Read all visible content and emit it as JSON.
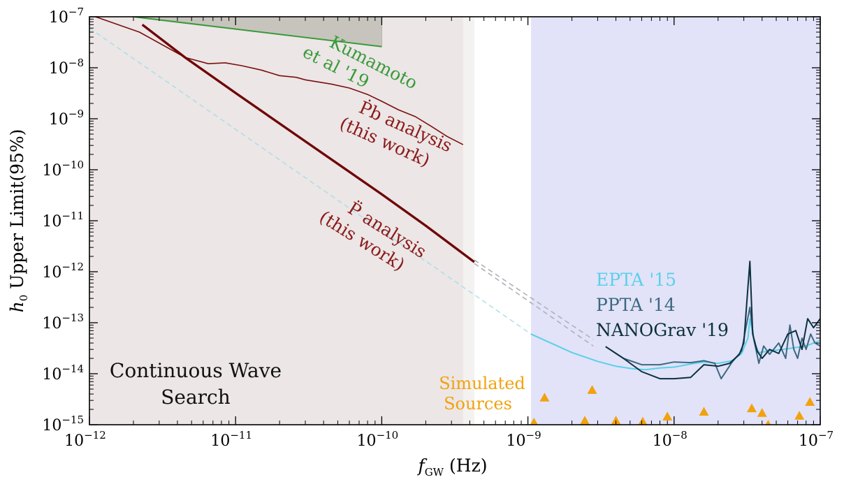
{
  "chart_data": {
    "type": "line",
    "title": "",
    "xlabel": "f_GW (Hz)",
    "ylabel": "h_0 Upper Limit(95%)",
    "xscale": "log",
    "yscale": "log",
    "xlim": [
      1e-12,
      1e-07
    ],
    "ylim": [
      1e-15,
      1e-07
    ],
    "grid": false,
    "x_ticks": [
      {
        "base": "10",
        "exp": "−12",
        "value": 1e-12
      },
      {
        "base": "10",
        "exp": "−11",
        "value": 1e-11
      },
      {
        "base": "10",
        "exp": "−10",
        "value": 1e-10
      },
      {
        "base": "10",
        "exp": "−9",
        "value": 1e-09
      },
      {
        "base": "10",
        "exp": "−8",
        "value": 1e-08
      },
      {
        "base": "10",
        "exp": "−7",
        "value": 1e-07
      }
    ],
    "y_ticks": [
      {
        "base": "10",
        "exp": "−15",
        "value": 1e-15
      },
      {
        "base": "10",
        "exp": "−14",
        "value": 1e-14
      },
      {
        "base": "10",
        "exp": "−13",
        "value": 1e-13
      },
      {
        "base": "10",
        "exp": "−12",
        "value": 1e-12
      },
      {
        "base": "10",
        "exp": "−11",
        "value": 1e-11
      },
      {
        "base": "10",
        "exp": "−10",
        "value": 1e-10
      },
      {
        "base": "10",
        "exp": "−9",
        "value": 1e-09
      },
      {
        "base": "10",
        "exp": "−8",
        "value": 1e-08
      },
      {
        "base": "10",
        "exp": "−7",
        "value": 1e-07
      }
    ],
    "shaded_regions": [
      {
        "color": "#c8b8b8",
        "opacity": 0.35,
        "x": [
          1e-12,
          3.6e-10
        ]
      },
      {
        "color": "#c8b8b8",
        "opacity": 0.2,
        "x": [
          3.6e-10,
          4.3e-10
        ]
      },
      {
        "color": "#ced0f4",
        "opacity": 0.6,
        "x": [
          1.05e-09,
          1e-07
        ]
      }
    ],
    "kumamoto_region": {
      "color": "#a8a89a",
      "x": [
        2e-12,
        1e-10
      ],
      "y_floor": 2.8e-08
    },
    "series": [
      {
        "name": "Kumamoto et al '19",
        "color": "#3a9a3a",
        "width": 2,
        "x": [
          2e-12,
          1e-10
        ],
        "y": [
          1e-07,
          2.6e-08
        ]
      },
      {
        "name": "Ṗb analysis (this work)",
        "color": "#7a1010",
        "width": 1.6,
        "x": [
          1.1e-12,
          2.2e-12,
          4.5e-12,
          6.5e-12,
          8.5e-12,
          1.1e-11,
          1.5e-11,
          2e-11,
          2.6e-11,
          3e-11,
          4.5e-11,
          6e-11,
          8e-11,
          1e-10,
          1.3e-10,
          1.7e-10,
          2.2e-10,
          2.8e-10,
          3.6e-10
        ],
        "y": [
          1e-07,
          5e-08,
          1.6e-08,
          1.2e-08,
          1.25e-08,
          1.1e-08,
          9e-09,
          7e-09,
          6.5e-09,
          5.8e-09,
          4.8e-09,
          4e-09,
          3e-09,
          2.2e-09,
          1.5e-09,
          1.1e-09,
          7e-10,
          4.5e-10,
          3.1e-10
        ]
      },
      {
        "name": "P̈ analysis (this work)",
        "color": "#6e0606",
        "width": 3.4,
        "x": [
          2.3e-12,
          4.5e-12,
          1e-11,
          3e-11,
          1e-10,
          2e-10,
          4.3e-10
        ],
        "y": [
          7e-08,
          1.6e-08,
          3.2e-09,
          3.6e-10,
          3.3e-11,
          8e-12,
          1.55e-12
        ]
      },
      {
        "name": "Ṗb extrapolation",
        "color": "#b0b0b8",
        "width": 1.6,
        "dash": "7,5",
        "x": [
          4.3e-10,
          2.8e-09
        ],
        "y": [
          1.7e-12,
          4.7e-14
        ]
      },
      {
        "name": "P̈ extrapolation",
        "color": "#b0b0b8",
        "width": 1.6,
        "dash": "7,5",
        "x": [
          4.3e-10,
          2.8e-09
        ],
        "y": [
          1.45e-12,
          3.5e-14
        ]
      },
      {
        "name": "EPTA extrapolation",
        "color": "#a8dde6",
        "width": 1.4,
        "dash": "7,5",
        "x": [
          1e-12,
          1.05e-09
        ],
        "y": [
          6e-08,
          6e-14
        ]
      },
      {
        "name": "EPTA '15",
        "color": "#5ad0ea",
        "width": 2,
        "x": [
          1.05e-09,
          2e-09,
          3e-09,
          4e-09,
          5.2e-09,
          6.4e-09,
          8e-09,
          1e-08,
          1.3e-08,
          1.6e-08,
          2e-08,
          2.5e-08,
          2.9e-08,
          3.2e-08,
          3.3e-08,
          3.55e-08,
          3.8e-08,
          4.5e-08,
          5.5e-08,
          6.5e-08,
          8e-08,
          1e-07
        ],
        "y": [
          6e-14,
          2.6e-14,
          1.75e-14,
          1.4e-14,
          1.25e-14,
          1.2e-14,
          1.3e-14,
          1.35e-14,
          1.55e-14,
          1.7e-14,
          1.6e-14,
          1.8e-14,
          2.5e-14,
          5e-14,
          1.2e-13,
          4e-14,
          2.6e-14,
          2.8e-14,
          3e-14,
          3.2e-14,
          3.5e-14,
          4.5e-14
        ]
      },
      {
        "name": "PPTA '14",
        "color": "#3e6880",
        "width": 2,
        "x": [
          3.4e-09,
          4.5e-09,
          6e-09,
          8e-09,
          1e-08,
          1.3e-08,
          1.6e-08,
          1.9e-08,
          2.1e-08,
          2.5e-08,
          2.9e-08,
          3.1e-08,
          3.3e-08,
          3.5e-08,
          3.8e-08,
          4.1e-08,
          4.5e-08,
          5.2e-08,
          5.8e-08,
          6.2e-08,
          6.6e-08,
          7e-08,
          7.5e-08,
          8e-08,
          8.6e-08,
          9.2e-08,
          1e-07
        ],
        "y": [
          3.4e-14,
          2e-14,
          1.5e-14,
          1.5e-14,
          1.7e-14,
          1.65e-14,
          1.8e-14,
          1.6e-14,
          8e-15,
          1.7e-14,
          2.8e-14,
          8e-14,
          2e-13,
          5e-14,
          1.6e-14,
          3.5e-14,
          2.4e-14,
          4e-14,
          2e-14,
          9e-14,
          3e-14,
          2e-14,
          5e-14,
          3e-14,
          6e-14,
          4e-14,
          3.5e-14
        ]
      },
      {
        "name": "NANOGrav '19",
        "color": "#0c3040",
        "width": 2,
        "x": [
          3.4e-09,
          4.5e-09,
          6e-09,
          8e-09,
          1e-08,
          1.3e-08,
          1.6e-08,
          2e-08,
          2.4e-08,
          2.8e-08,
          3e-08,
          3.2e-08,
          3.3e-08,
          3.45e-08,
          3.7e-08,
          4e-08,
          4.5e-08,
          5.2e-08,
          6e-08,
          6.8e-08,
          7.5e-08,
          8.2e-08,
          9e-08,
          1e-07
        ],
        "y": [
          3.4e-14,
          2e-14,
          1.1e-14,
          8e-15,
          8e-15,
          8.5e-15,
          1.5e-14,
          1.4e-14,
          1.6e-14,
          2.4e-14,
          4e-14,
          5e-13,
          1.6e-12,
          6e-14,
          2.8e-14,
          2e-14,
          3e-14,
          2.5e-14,
          6e-14,
          7e-14,
          3e-14,
          1.2e-13,
          8e-14,
          1.2e-13
        ]
      }
    ],
    "scatter": {
      "name": "Simulated Sources",
      "color": "#f2a20e",
      "x": [
        1.1e-09,
        1.3e-09,
        2.45e-09,
        2.75e-09,
        4e-09,
        6.1e-09,
        9e-09,
        1.6e-08,
        3.4e-08,
        4e-08,
        4.4e-08,
        7.2e-08,
        8.5e-08
      ],
      "y": [
        1.1e-15,
        3.4e-15,
        1.2e-15,
        4.8e-15,
        1.2e-15,
        1.15e-15,
        1.45e-15,
        1.8e-15,
        2.1e-15,
        1.7e-15,
        1e-15,
        1.5e-15,
        2.8e-15
      ]
    },
    "annotations": {
      "kumamoto": [
        "Kumamoto",
        "et al '19"
      ],
      "pb": [
        "Ṗb analysis",
        "(this work)"
      ],
      "pdd": [
        "P̈ analysis",
        "(this work)"
      ],
      "epta": "EPTA '15",
      "ppta": "PPTA '14",
      "nanograv": "NANOGrav '19",
      "simulated": [
        "Simulated",
        "Sources"
      ],
      "cw": [
        "Continuous Wave",
        "Search"
      ]
    },
    "colors": {
      "kumamoto": "#3a9a3a",
      "pb": "#8b1a1a",
      "epta": "#5ad0ea",
      "ppta": "#3e6880",
      "nanograv": "#0c3040",
      "simulated": "#f2a20e",
      "cw": "#111111"
    }
  }
}
